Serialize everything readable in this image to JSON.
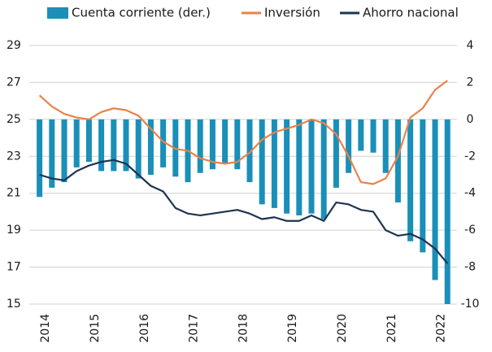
{
  "chart_data": {
    "type": "bar-line",
    "categories": [
      "2014",
      null,
      null,
      null,
      "2015",
      null,
      null,
      null,
      "2016",
      null,
      null,
      null,
      "2017",
      null,
      null,
      null,
      "2018",
      null,
      null,
      null,
      "2019",
      null,
      null,
      null,
      "2020",
      null,
      null,
      null,
      "2021",
      null,
      null,
      null,
      "2022",
      null
    ],
    "series": [
      {
        "name": "Cuenta corriente (der.)",
        "type": "bar",
        "axis": "y2",
        "color": "#1a8fb8",
        "values": [
          -4.2,
          -3.7,
          -3.4,
          -2.6,
          -2.3,
          -2.8,
          -2.8,
          -2.8,
          -3.2,
          -3.0,
          -2.6,
          -3.1,
          -3.4,
          -2.9,
          -2.7,
          -2.4,
          -2.7,
          -3.4,
          -4.6,
          -4.8,
          -5.1,
          -5.2,
          -5.1,
          -5.4,
          -3.7,
          -2.9,
          -1.7,
          -1.8,
          -2.9,
          -4.5,
          -6.6,
          -7.2,
          -8.7,
          -10
        ]
      },
      {
        "name": "Inversión",
        "type": "line",
        "color": "#e8834a",
        "values": [
          26.3,
          25.7,
          25.3,
          25.1,
          25.0,
          25.4,
          25.6,
          25.5,
          25.2,
          24.5,
          23.8,
          23.4,
          23.3,
          22.9,
          22.7,
          22.6,
          22.7,
          23.2,
          23.9,
          24.3,
          24.5,
          24.7,
          25.0,
          24.8,
          24.2,
          23.0,
          21.6,
          21.5,
          21.8,
          23.0,
          25.1,
          25.6,
          26.6,
          27.1
        ]
      },
      {
        "name": "Ahorro nacional",
        "type": "line",
        "color": "#1e3450",
        "values": [
          22.0,
          21.8,
          21.7,
          22.2,
          22.5,
          22.7,
          22.8,
          22.6,
          22.0,
          21.4,
          21.1,
          20.2,
          19.9,
          19.8,
          19.9,
          20.0,
          20.1,
          19.9,
          19.6,
          19.7,
          19.5,
          19.5,
          19.8,
          19.5,
          20.5,
          20.4,
          20.1,
          20.0,
          19.0,
          18.7,
          18.8,
          18.5,
          18.0,
          17.2
        ]
      }
    ],
    "ylim": [
      15,
      29
    ],
    "yticks": [
      15,
      17,
      19,
      21,
      23,
      25,
      27,
      29
    ],
    "y2lim": [
      -10,
      4
    ],
    "y2ticks": [
      -10,
      -8,
      -6,
      -4,
      -2,
      0,
      2,
      4
    ],
    "grid": true
  }
}
